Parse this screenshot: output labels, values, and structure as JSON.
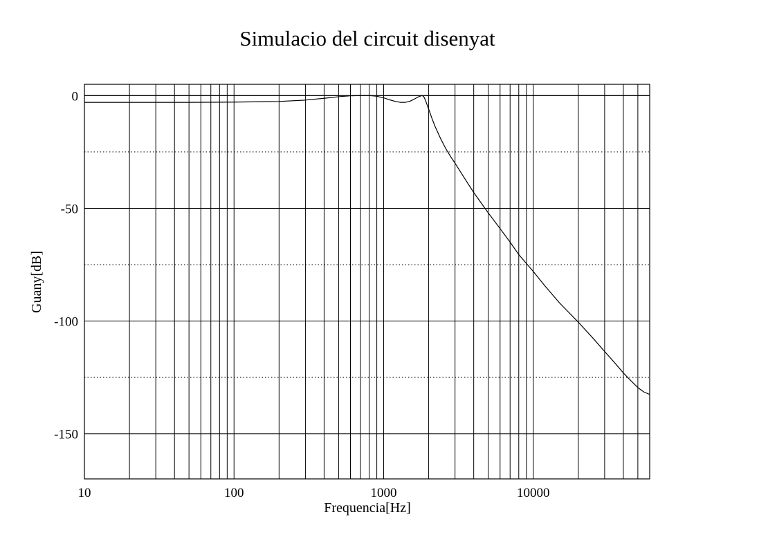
{
  "chart_data": {
    "type": "line",
    "title": "Simulacio del circuit disenyat",
    "xlabel": "Frequencia[Hz]",
    "ylabel": "Guany[dB]",
    "xscale": "log",
    "xlim": [
      10,
      60000
    ],
    "ylim": [
      -170,
      5
    ],
    "x_ticks": [
      {
        "value": 10,
        "label": "10"
      },
      {
        "value": 100,
        "label": "100"
      },
      {
        "value": 1000,
        "label": "1000"
      },
      {
        "value": 10000,
        "label": "10000"
      }
    ],
    "y_ticks": [
      {
        "value": 0,
        "label": "0"
      },
      {
        "value": -50,
        "label": "-50"
      },
      {
        "value": -100,
        "label": "-100"
      },
      {
        "value": -150,
        "label": "-150"
      }
    ],
    "y_minor_dotted": [
      -25,
      -75,
      -125
    ],
    "grid": true,
    "reference_line": {
      "value": 0
    },
    "series": [
      {
        "name": "Guany",
        "x": [
          10,
          20,
          50,
          100,
          200,
          300,
          400,
          500,
          600,
          700,
          800,
          900,
          1000,
          1100,
          1200,
          1300,
          1400,
          1500,
          1600,
          1700,
          1800,
          1850,
          1900,
          2000,
          2100,
          2200,
          2400,
          2600,
          2800,
          3000,
          3500,
          4000,
          5000,
          6000,
          7000,
          8000,
          10000,
          12000,
          15000,
          20000,
          25000,
          30000,
          35000,
          40000,
          45000,
          50000,
          55000,
          60000
        ],
        "y": [
          -3.0,
          -3.0,
          -3.0,
          -2.9,
          -2.6,
          -2.0,
          -1.2,
          -0.5,
          -0.1,
          0.0,
          0.0,
          -0.3,
          -1.0,
          -1.9,
          -2.6,
          -3.0,
          -3.0,
          -2.5,
          -1.6,
          -0.6,
          0.0,
          -0.3,
          -2.0,
          -6.0,
          -10.0,
          -13.5,
          -19.0,
          -23.5,
          -27.0,
          -30.0,
          -37.0,
          -43.0,
          -52.0,
          -59.0,
          -65.0,
          -70.5,
          -78.0,
          -84.5,
          -92.0,
          -100.5,
          -107.5,
          -113.5,
          -118.5,
          -123.0,
          -126.5,
          -129.5,
          -131.5,
          -132.5
        ]
      }
    ]
  }
}
